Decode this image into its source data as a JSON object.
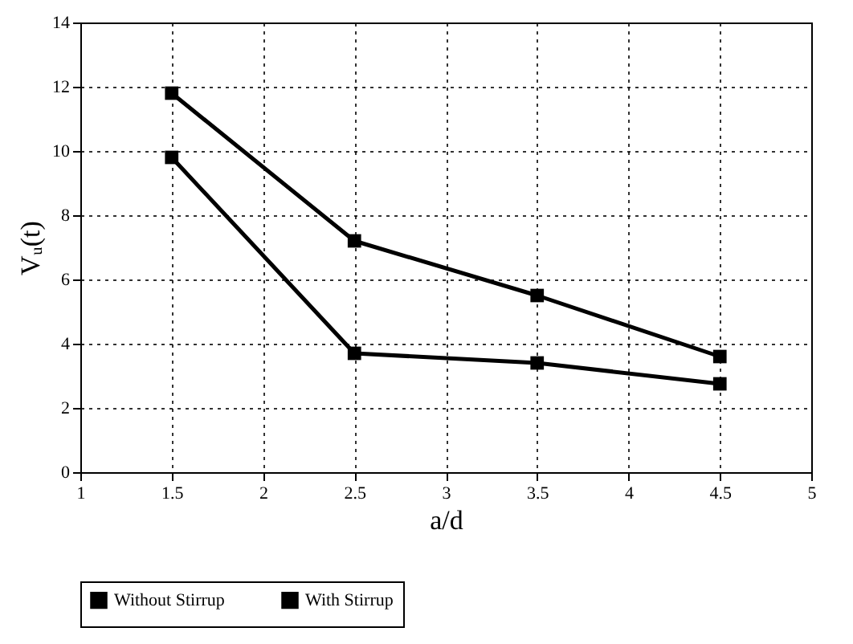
{
  "chart_data": {
    "type": "line",
    "xlabel": "a/d",
    "ylabel": "Vᵤ(t)",
    "x": [
      1.5,
      2.5,
      3.5,
      4.5
    ],
    "series": [
      {
        "name": "Without Stirrup",
        "color": "#000000",
        "values": [
          9.8,
          3.7,
          3.4,
          2.75
        ]
      },
      {
        "name": "With Stirrup",
        "color": "#000000",
        "values": [
          11.8,
          7.2,
          5.5,
          3.6
        ]
      }
    ],
    "xlim": [
      1,
      5
    ],
    "xticks": [
      1,
      1.5,
      2,
      2.5,
      3,
      3.5,
      4,
      4.5,
      5
    ],
    "ylim": [
      0,
      14
    ],
    "yticks": [
      0,
      2,
      4,
      6,
      8,
      10,
      12,
      14
    ],
    "grid": true,
    "legend": "bottom",
    "marker": "square",
    "line_style": "solid"
  }
}
